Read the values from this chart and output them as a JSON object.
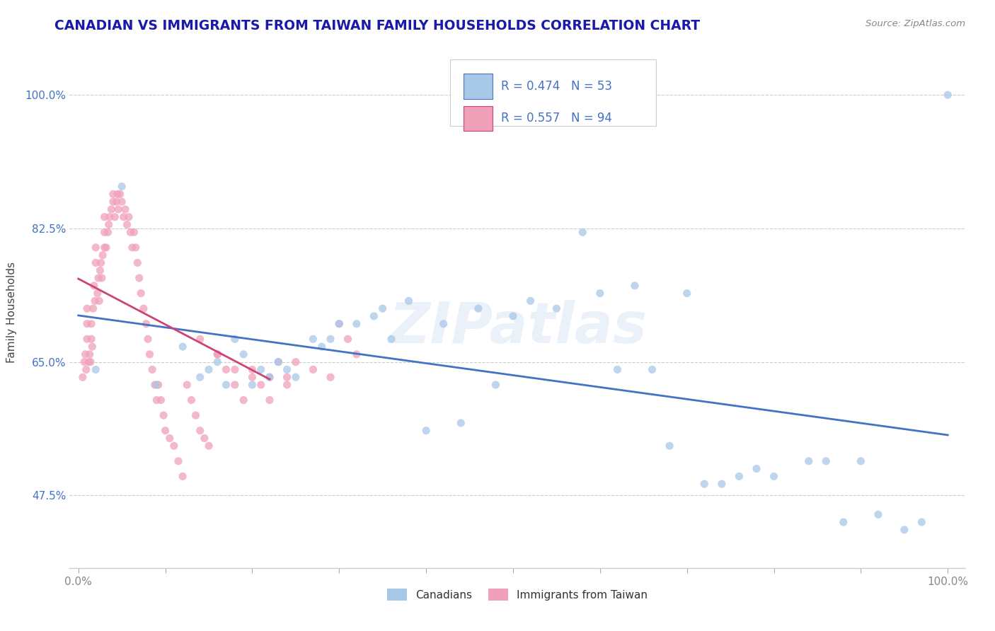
{
  "title": "CANADIAN VS IMMIGRANTS FROM TAIWAN FAMILY HOUSEHOLDS CORRELATION CHART",
  "source": "Source: ZipAtlas.com",
  "ylabel": "Family Households",
  "watermark": "ZIPatlas",
  "yticks": [
    0.475,
    0.65,
    0.825,
    1.0
  ],
  "ytick_labels": [
    "47.5%",
    "65.0%",
    "82.5%",
    "100.0%"
  ],
  "xtick_labels_ends": [
    "0.0%",
    "100.0%"
  ],
  "legend_r_canadian": "R = 0.474",
  "legend_n_canadian": "N = 53",
  "legend_r_taiwan": "R = 0.557",
  "legend_n_taiwan": "N = 94",
  "legend_label_canadian": "Canadians",
  "legend_label_taiwan": "Immigrants from Taiwan",
  "color_canadian": "#a8c8e8",
  "color_taiwan": "#f0a0b8",
  "color_trend_canadian": "#4472c4",
  "color_trend_taiwan": "#cc4477",
  "title_color": "#1a1aaa",
  "source_color": "#888888",
  "axis_label_color": "#444444",
  "tick_color_y": "#4472c4",
  "tick_color_x": "#888888",
  "grid_color": "#cccccc",
  "background_color": "#ffffff",
  "canadian_x": [
    0.02,
    0.05,
    0.09,
    0.12,
    0.14,
    0.15,
    0.16,
    0.17,
    0.18,
    0.19,
    0.2,
    0.21,
    0.22,
    0.23,
    0.24,
    0.25,
    0.27,
    0.28,
    0.29,
    0.3,
    0.32,
    0.34,
    0.35,
    0.36,
    0.38,
    0.4,
    0.42,
    0.44,
    0.46,
    0.48,
    0.5,
    0.52,
    0.55,
    0.58,
    0.6,
    0.62,
    0.64,
    0.66,
    0.68,
    0.7,
    0.72,
    0.74,
    0.76,
    0.78,
    0.8,
    0.84,
    0.86,
    0.88,
    0.9,
    0.92,
    0.95,
    0.97,
    1.0
  ],
  "canadian_y": [
    0.64,
    0.88,
    0.62,
    0.67,
    0.63,
    0.64,
    0.65,
    0.62,
    0.68,
    0.66,
    0.62,
    0.64,
    0.63,
    0.65,
    0.64,
    0.63,
    0.68,
    0.67,
    0.68,
    0.7,
    0.7,
    0.71,
    0.72,
    0.68,
    0.73,
    0.56,
    0.7,
    0.57,
    0.72,
    0.62,
    0.71,
    0.73,
    0.72,
    0.82,
    0.74,
    0.64,
    0.75,
    0.64,
    0.54,
    0.74,
    0.49,
    0.49,
    0.5,
    0.51,
    0.5,
    0.52,
    0.52,
    0.44,
    0.52,
    0.45,
    0.43,
    0.44,
    1.0
  ],
  "taiwan_x": [
    0.005,
    0.007,
    0.008,
    0.009,
    0.01,
    0.01,
    0.01,
    0.012,
    0.013,
    0.014,
    0.015,
    0.015,
    0.016,
    0.017,
    0.018,
    0.019,
    0.02,
    0.02,
    0.022,
    0.023,
    0.024,
    0.025,
    0.026,
    0.027,
    0.028,
    0.03,
    0.03,
    0.03,
    0.032,
    0.034,
    0.035,
    0.036,
    0.038,
    0.04,
    0.04,
    0.042,
    0.044,
    0.045,
    0.046,
    0.048,
    0.05,
    0.052,
    0.054,
    0.056,
    0.058,
    0.06,
    0.062,
    0.064,
    0.066,
    0.068,
    0.07,
    0.072,
    0.075,
    0.078,
    0.08,
    0.082,
    0.085,
    0.088,
    0.09,
    0.092,
    0.095,
    0.098,
    0.1,
    0.105,
    0.11,
    0.115,
    0.12,
    0.125,
    0.13,
    0.135,
    0.14,
    0.145,
    0.15,
    0.16,
    0.17,
    0.18,
    0.19,
    0.2,
    0.21,
    0.22,
    0.23,
    0.24,
    0.25,
    0.27,
    0.29,
    0.3,
    0.31,
    0.32,
    0.14,
    0.16,
    0.18,
    0.2,
    0.22,
    0.24
  ],
  "taiwan_y": [
    0.63,
    0.65,
    0.66,
    0.64,
    0.72,
    0.68,
    0.7,
    0.65,
    0.66,
    0.65,
    0.68,
    0.7,
    0.67,
    0.72,
    0.75,
    0.73,
    0.78,
    0.8,
    0.74,
    0.76,
    0.73,
    0.77,
    0.78,
    0.76,
    0.79,
    0.8,
    0.82,
    0.84,
    0.8,
    0.82,
    0.83,
    0.84,
    0.85,
    0.86,
    0.87,
    0.84,
    0.86,
    0.87,
    0.85,
    0.87,
    0.86,
    0.84,
    0.85,
    0.83,
    0.84,
    0.82,
    0.8,
    0.82,
    0.8,
    0.78,
    0.76,
    0.74,
    0.72,
    0.7,
    0.68,
    0.66,
    0.64,
    0.62,
    0.6,
    0.62,
    0.6,
    0.58,
    0.56,
    0.55,
    0.54,
    0.52,
    0.5,
    0.62,
    0.6,
    0.58,
    0.56,
    0.55,
    0.54,
    0.66,
    0.64,
    0.62,
    0.6,
    0.63,
    0.62,
    0.6,
    0.65,
    0.63,
    0.65,
    0.64,
    0.63,
    0.7,
    0.68,
    0.66,
    0.68,
    0.66,
    0.64,
    0.64,
    0.63,
    0.62
  ]
}
